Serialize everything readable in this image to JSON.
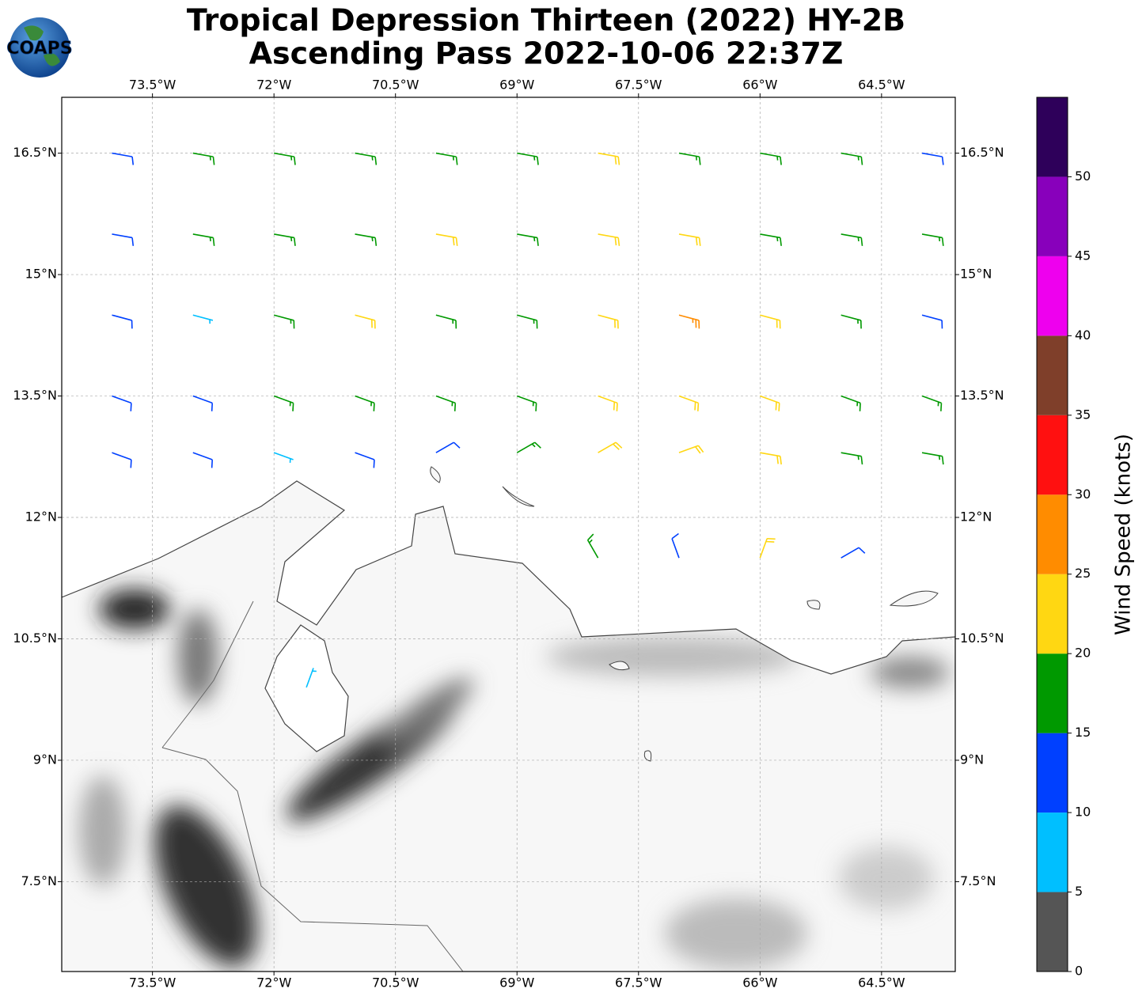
{
  "chart_data": {
    "type": "barbs",
    "title": [
      "Tropical Depression Thirteen (2022) HY-2B",
      "Ascending Pass 2022-10-06 22:37Z"
    ],
    "logo": "COAPS",
    "xlim": [
      -74.62,
      -63.59
    ],
    "ylim": [
      6.39,
      17.19
    ],
    "xticks": [
      {
        "value": -73.5,
        "label": "73.5°W"
      },
      {
        "value": -72,
        "label": "72°W"
      },
      {
        "value": -70.5,
        "label": "70.5°W"
      },
      {
        "value": -69,
        "label": "69°W"
      },
      {
        "value": -67.5,
        "label": "67.5°W"
      },
      {
        "value": -66,
        "label": "66°W"
      },
      {
        "value": -64.5,
        "label": "64.5°W"
      }
    ],
    "yticks": [
      {
        "value": 16.5,
        "label": "16.5°N"
      },
      {
        "value": 15,
        "label": "15°N"
      },
      {
        "value": 13.5,
        "label": "13.5°N"
      },
      {
        "value": 12,
        "label": "12°N"
      },
      {
        "value": 10.5,
        "label": "10.5°N"
      },
      {
        "value": 9,
        "label": "9°N"
      },
      {
        "value": 7.5,
        "label": "7.5°N"
      }
    ],
    "grid": true,
    "barbs": {
      "lon": [
        -74,
        -73,
        -72,
        -71,
        -70,
        -69,
        -68,
        -67,
        -66,
        -65,
        -64,
        -74,
        -73,
        -72,
        -71,
        -70,
        -69,
        -68,
        -67,
        -66,
        -65,
        -64,
        -74,
        -73,
        -72,
        -71,
        -70,
        -69,
        -68,
        -67,
        -66,
        -65,
        -64,
        -74,
        -73,
        -72,
        -71,
        -70,
        -69,
        -68,
        -67,
        -66,
        -65,
        -64,
        -74,
        -73,
        -72,
        -71,
        -70,
        -69,
        -68,
        -67,
        -66,
        -65,
        -64,
        -68,
        -67,
        -66,
        -65,
        -71.6
      ],
      "lat": [
        16.5,
        16.5,
        16.5,
        16.5,
        16.5,
        16.5,
        16.5,
        16.5,
        16.5,
        16.5,
        16.5,
        15.5,
        15.5,
        15.5,
        15.5,
        15.5,
        15.5,
        15.5,
        15.5,
        15.5,
        15.5,
        15.5,
        14.5,
        14.5,
        14.5,
        14.5,
        14.5,
        14.5,
        14.5,
        14.5,
        14.5,
        14.5,
        14.5,
        13.5,
        13.5,
        13.5,
        13.5,
        13.5,
        13.5,
        13.5,
        13.5,
        13.5,
        13.5,
        13.5,
        12.8,
        12.8,
        12.8,
        12.8,
        12.8,
        12.8,
        12.8,
        12.8,
        12.8,
        12.8,
        12.8,
        11.5,
        11.5,
        11.5,
        11.5,
        9.9
      ],
      "speed": [
        12,
        17,
        17,
        17,
        17,
        19,
        22,
        18,
        17,
        17,
        12,
        12,
        16,
        17,
        18,
        21,
        19,
        22,
        22,
        19,
        17,
        16,
        13,
        8,
        17,
        21,
        18,
        19,
        22,
        26,
        22,
        17,
        13,
        12,
        14,
        17,
        18,
        17,
        19,
        22,
        23,
        22,
        18,
        17,
        12,
        13,
        8,
        12,
        13,
        17,
        22,
        22,
        21,
        17,
        17,
        16,
        13,
        22,
        14,
        7
      ],
      "direction": [
        100,
        100,
        100,
        100,
        100,
        100,
        100,
        100,
        100,
        100,
        100,
        100,
        100,
        100,
        100,
        100,
        100,
        100,
        100,
        100,
        100,
        100,
        105,
        105,
        105,
        105,
        105,
        105,
        105,
        105,
        105,
        105,
        105,
        110,
        110,
        110,
        110,
        110,
        110,
        110,
        110,
        110,
        110,
        110,
        110,
        110,
        110,
        110,
        60,
        60,
        60,
        70,
        100,
        100,
        100,
        330,
        340,
        20,
        60,
        20
      ]
    },
    "colorbar": {
      "label": "Wind Speed (knots)",
      "bounds": [
        0,
        5,
        10,
        15,
        20,
        25,
        30,
        35,
        40,
        45,
        50,
        55
      ],
      "colors": [
        "#555555",
        "#00bfff",
        "#0040ff",
        "#009900",
        "#ffd712",
        "#ff8c00",
        "#ff1010",
        "#7f3f2a",
        "#ee00ee",
        "#8800bb",
        "#2e005a"
      ],
      "ticks": [
        0,
        5,
        10,
        15,
        20,
        25,
        30,
        35,
        40,
        45,
        50
      ]
    }
  }
}
